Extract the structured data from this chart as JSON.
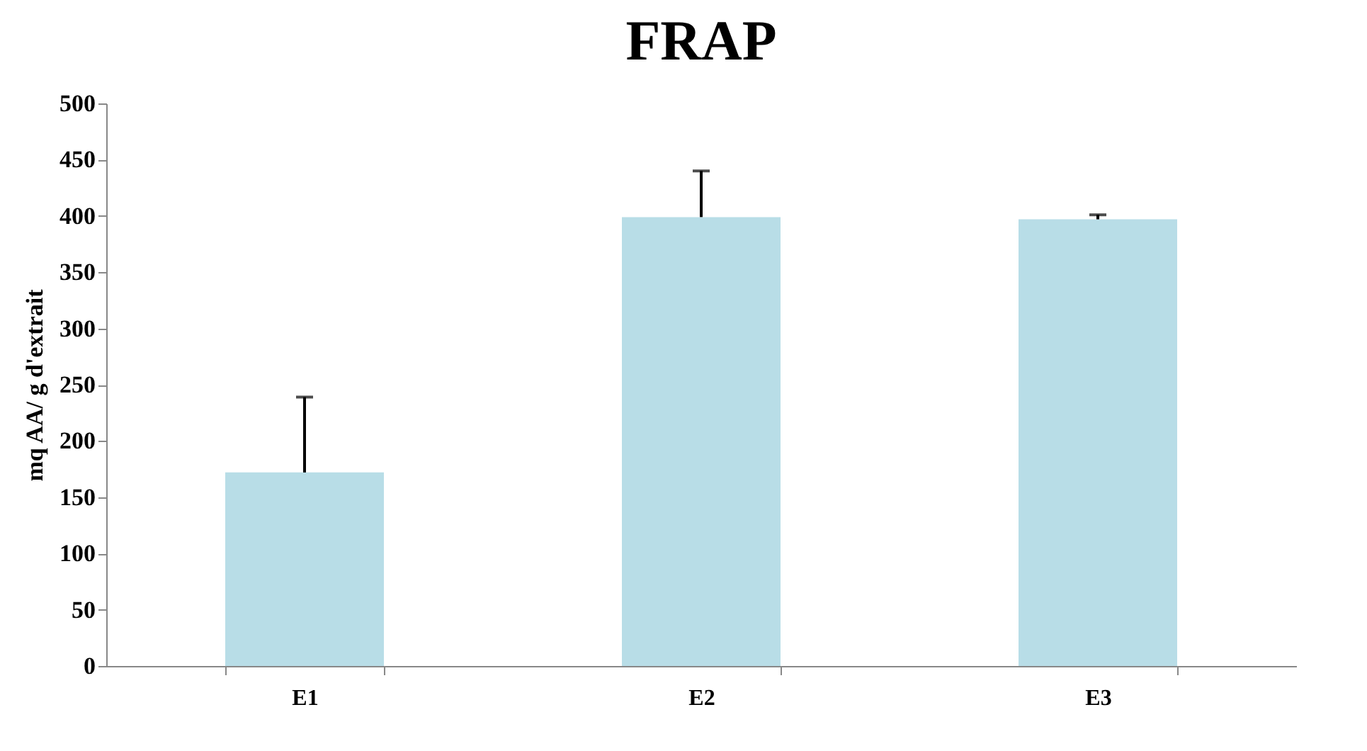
{
  "chart_data": {
    "type": "bar",
    "title": "FRAP",
    "ylabel": "mq AA/ g d'extrait",
    "categories": [
      "E1",
      "E2",
      "E3"
    ],
    "values": [
      172,
      399,
      397
    ],
    "errors": [
      [
        172,
        239
      ],
      [
        399,
        440
      ],
      [
        397,
        401
      ]
    ],
    "color": "#b8dde7",
    "ylim": [
      0,
      500
    ],
    "yticks": [
      0,
      50,
      100,
      150,
      200,
      250,
      300,
      350,
      400,
      450,
      500
    ],
    "grid": false
  }
}
